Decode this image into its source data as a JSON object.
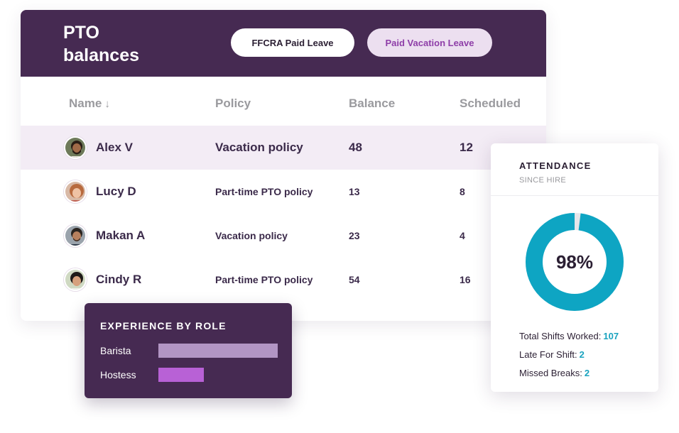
{
  "pto": {
    "title_line1": "PTO",
    "title_line2": "balances",
    "tabs": [
      {
        "label": "FFCRA Paid Leave",
        "active": false
      },
      {
        "label": "Paid Vacation Leave",
        "active": true
      }
    ],
    "columns": {
      "name": "Name",
      "name_sort_icon": "arrow-down-icon",
      "policy": "Policy",
      "balance": "Balance",
      "scheduled": "Scheduled"
    },
    "rows": [
      {
        "name": "Alex V",
        "policy": "Vacation policy",
        "balance": "48",
        "scheduled": "12",
        "highlighted": true
      },
      {
        "name": "Lucy D",
        "policy": "Part-time PTO policy",
        "balance": "13",
        "scheduled": "8",
        "highlighted": false
      },
      {
        "name": "Makan A",
        "policy": "Vacation policy",
        "balance": "23",
        "scheduled": "4",
        "highlighted": false
      },
      {
        "name": "Cindy R",
        "policy": "Part-time PTO policy",
        "balance": "54",
        "scheduled": "16",
        "highlighted": false
      }
    ]
  },
  "experience": {
    "title": "EXPERIENCE BY ROLE",
    "roles": [
      {
        "label": "Barista",
        "value": 1.0,
        "color": "#b295c4"
      },
      {
        "label": "Hostess",
        "value": 0.38,
        "color": "#b861d6"
      }
    ]
  },
  "attendance": {
    "title": "ATTENDANCE",
    "subtitle": "SINCE HIRE",
    "percent_label": "98%",
    "percent": 98,
    "ring_color": "#0ea5c3",
    "ring_rest_color": "#e6e6ea",
    "stats": [
      {
        "label": "Total Shifts Worked:",
        "value": "107"
      },
      {
        "label": "Late For Shift:",
        "value": "2"
      },
      {
        "label": "Missed Breaks:",
        "value": "2"
      }
    ]
  },
  "colors": {
    "header_purple": "#462a52",
    "row_highlight": "#f3ecf5",
    "accent_teal": "#1aa3bf"
  }
}
